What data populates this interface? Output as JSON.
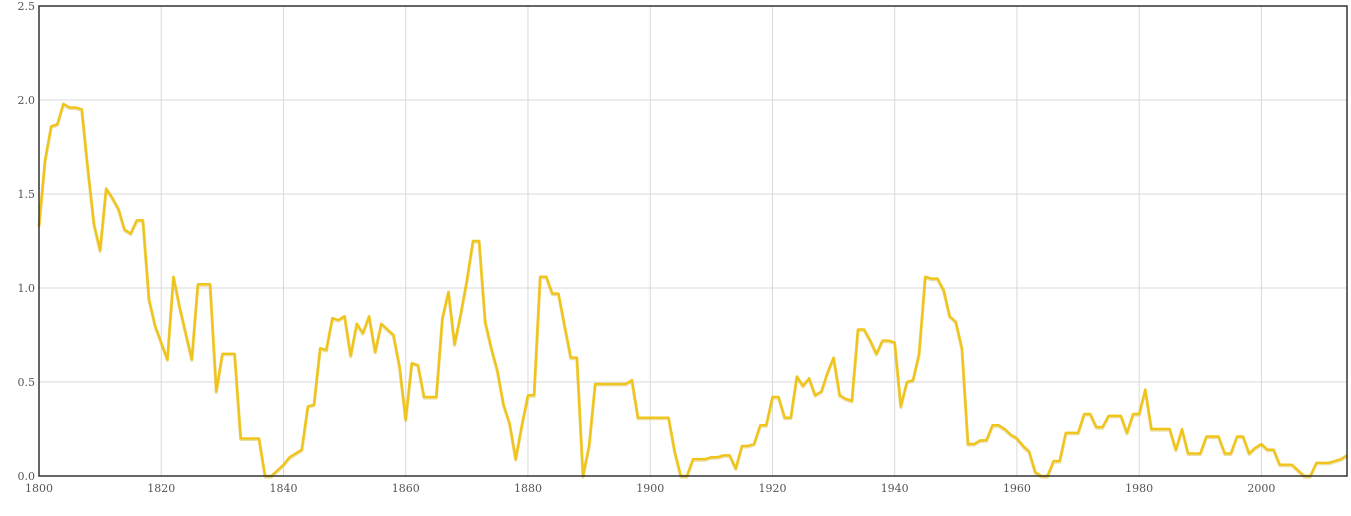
{
  "chart_data": {
    "type": "line",
    "title": "",
    "xlabel": "",
    "ylabel": "",
    "xlim": [
      1800,
      2014
    ],
    "ylim": [
      0,
      2.5
    ],
    "grid": true,
    "x_ticks": [
      "1800",
      "1820",
      "1840",
      "1860",
      "1880",
      "1900",
      "1920",
      "1940",
      "1960",
      "1980",
      "2000"
    ],
    "y_ticks": [
      "0.0",
      "0.5",
      "1.0",
      "1.5",
      "2.0",
      "2.5"
    ],
    "colors": {
      "line": "#f0c419",
      "grid": "#d9d9d9",
      "frame": "#333333"
    },
    "series": [
      {
        "x": [
          1800,
          1801,
          1802,
          1803,
          1804,
          1805,
          1806,
          1807,
          1808,
          1809,
          1810,
          1811,
          1812,
          1813,
          1814,
          1815,
          1816,
          1817,
          1818,
          1819,
          1820,
          1821,
          1822,
          1823,
          1824,
          1825,
          1826,
          1827,
          1828,
          1829,
          1830,
          1831,
          1832,
          1833,
          1834,
          1835,
          1836,
          1837,
          1838,
          1839,
          1840,
          1841,
          1842,
          1843,
          1844,
          1845,
          1846,
          1847,
          1848,
          1849,
          1850,
          1851,
          1852,
          1853,
          1854,
          1855,
          1856,
          1857,
          1858,
          1859,
          1860,
          1861,
          1862,
          1863,
          1864,
          1865,
          1866,
          1867,
          1868,
          1869,
          1870,
          1871,
          1872,
          1873,
          1874,
          1875,
          1876,
          1877,
          1878,
          1879,
          1880,
          1881,
          1882,
          1883,
          1884,
          1885,
          1886,
          1887,
          1888,
          1889,
          1890,
          1891,
          1892,
          1893,
          1894,
          1895,
          1896,
          1897,
          1898,
          1899,
          1900,
          1901,
          1902,
          1903,
          1904,
          1905,
          1906,
          1907,
          1908,
          1909,
          1910,
          1911,
          1912,
          1913,
          1914,
          1915,
          1916,
          1917,
          1918,
          1919,
          1920,
          1921,
          1922,
          1923,
          1924,
          1925,
          1926,
          1927,
          1928,
          1929,
          1930,
          1931,
          1932,
          1933,
          1934,
          1935,
          1936,
          1937,
          1938,
          1939,
          1940,
          1941,
          1942,
          1943,
          1944,
          1945,
          1946,
          1947,
          1948,
          1949,
          1950,
          1951,
          1952,
          1953,
          1954,
          1955,
          1956,
          1957,
          1958,
          1959,
          1960,
          1961,
          1962,
          1963,
          1964,
          1965,
          1966,
          1967,
          1968,
          1969,
          1970,
          1971,
          1972,
          1973,
          1974,
          1975,
          1976,
          1977,
          1978,
          1979,
          1980,
          1981,
          1982,
          1983,
          1984,
          1985,
          1986,
          1987,
          1988,
          1989,
          1990,
          1991,
          1992,
          1993,
          1994,
          1995,
          1996,
          1997,
          1998,
          1999,
          2000,
          2001,
          2002,
          2003,
          2004,
          2005,
          2006,
          2007,
          2008,
          2009,
          2010,
          2011,
          2012,
          2013,
          2014
        ],
        "values": [
          1.33,
          1.68,
          1.86,
          1.87,
          1.98,
          1.96,
          1.96,
          1.95,
          1.63,
          1.34,
          1.2,
          1.53,
          1.48,
          1.42,
          1.31,
          1.29,
          1.36,
          1.36,
          0.94,
          0.8,
          0.71,
          0.62,
          1.06,
          0.9,
          0.76,
          0.62,
          1.02,
          1.02,
          1.02,
          0.45,
          0.65,
          0.65,
          0.65,
          0.2,
          0.2,
          0.2,
          0.2,
          0.0,
          0.0,
          0.03,
          0.06,
          0.1,
          0.12,
          0.14,
          0.37,
          0.38,
          0.68,
          0.67,
          0.84,
          0.83,
          0.85,
          0.64,
          0.81,
          0.76,
          0.85,
          0.66,
          0.81,
          0.78,
          0.75,
          0.58,
          0.3,
          0.6,
          0.59,
          0.42,
          0.42,
          0.42,
          0.84,
          0.98,
          0.7,
          0.86,
          1.04,
          1.25,
          1.25,
          0.82,
          0.68,
          0.56,
          0.38,
          0.28,
          0.09,
          0.27,
          0.43,
          0.43,
          1.06,
          1.06,
          0.97,
          0.97,
          0.8,
          0.63,
          0.63,
          0.0,
          0.16,
          0.49,
          0.49,
          0.49,
          0.49,
          0.49,
          0.49,
          0.51,
          0.31,
          0.31,
          0.31,
          0.31,
          0.31,
          0.31,
          0.13,
          0.0,
          0.0,
          0.09,
          0.09,
          0.09,
          0.1,
          0.1,
          0.11,
          0.11,
          0.04,
          0.16,
          0.16,
          0.17,
          0.27,
          0.27,
          0.42,
          0.42,
          0.31,
          0.31,
          0.53,
          0.48,
          0.52,
          0.43,
          0.45,
          0.55,
          0.63,
          0.43,
          0.41,
          0.4,
          0.78,
          0.78,
          0.72,
          0.65,
          0.72,
          0.72,
          0.71,
          0.37,
          0.5,
          0.51,
          0.65,
          1.06,
          1.05,
          1.05,
          0.99,
          0.85,
          0.82,
          0.68,
          0.17,
          0.17,
          0.19,
          0.19,
          0.27,
          0.27,
          0.25,
          0.22,
          0.2,
          0.16,
          0.13,
          0.02,
          0.0,
          0.0,
          0.08,
          0.08,
          0.23,
          0.23,
          0.23,
          0.33,
          0.33,
          0.26,
          0.26,
          0.32,
          0.32,
          0.32,
          0.23,
          0.33,
          0.33,
          0.46,
          0.25,
          0.25,
          0.25,
          0.25,
          0.14,
          0.25,
          0.12,
          0.12,
          0.12,
          0.21,
          0.21,
          0.21,
          0.12,
          0.12,
          0.21,
          0.21,
          0.12,
          0.15,
          0.17,
          0.14,
          0.14,
          0.06,
          0.06,
          0.06,
          0.03,
          0.0,
          0.0,
          0.07,
          0.07,
          0.07,
          0.08,
          0.09,
          0.11
        ]
      }
    ]
  }
}
